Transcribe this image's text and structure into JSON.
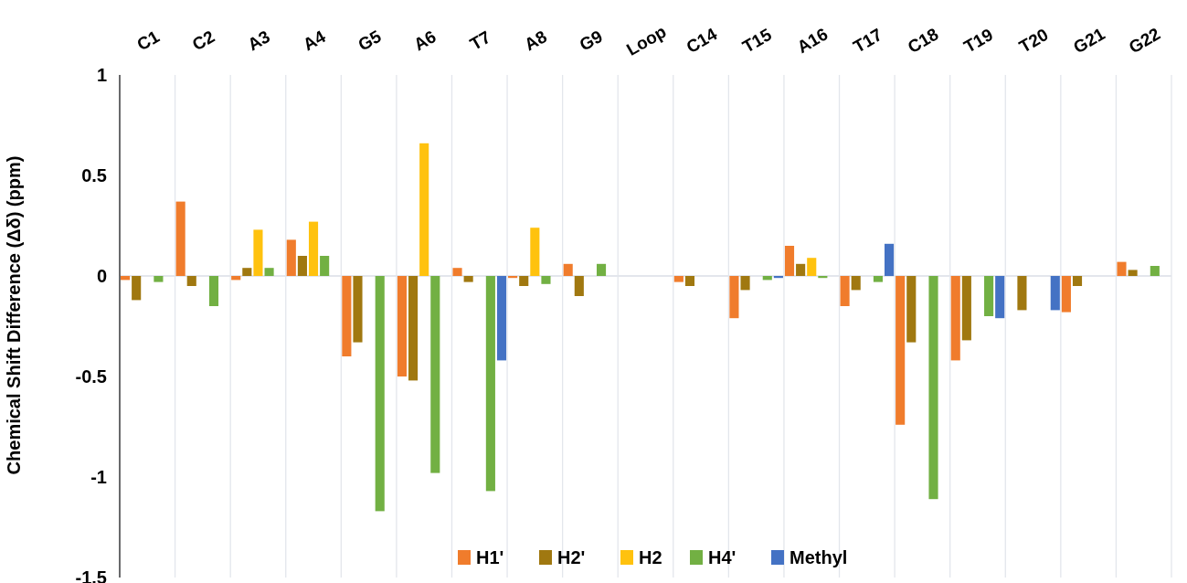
{
  "chart_data": {
    "type": "bar",
    "ylabel": "Chemical Shift Difference  (Δδ) (ppm)",
    "categories": [
      "C1",
      "C2",
      "A3",
      "A4",
      "G5",
      "A6",
      "T7",
      "A8",
      "G9",
      "Loop",
      "C14",
      "T15",
      "A16",
      "T17",
      "C18",
      "T19",
      "T20",
      "G21",
      "G22"
    ],
    "series": [
      {
        "name": "H1'",
        "color": "#f07c2c",
        "values": [
          -0.02,
          0.37,
          -0.02,
          0.18,
          -0.4,
          -0.5,
          0.04,
          -0.01,
          0.06,
          null,
          -0.03,
          -0.21,
          0.15,
          -0.15,
          -0.74,
          -0.42,
          null,
          -0.18,
          0.07
        ]
      },
      {
        "name": "H2'",
        "color": "#a07810",
        "values": [
          -0.12,
          -0.05,
          0.04,
          0.1,
          -0.33,
          -0.52,
          -0.03,
          -0.05,
          -0.1,
          null,
          -0.05,
          -0.07,
          0.06,
          -0.07,
          -0.33,
          -0.32,
          -0.17,
          -0.05,
          0.03
        ]
      },
      {
        "name": "H2",
        "color": "#ffc20e",
        "values": [
          null,
          null,
          0.23,
          0.27,
          null,
          0.66,
          null,
          0.24,
          null,
          null,
          null,
          null,
          0.09,
          null,
          null,
          null,
          null,
          null,
          null
        ]
      },
      {
        "name": "H4'",
        "color": "#72b043",
        "values": [
          -0.03,
          -0.15,
          0.04,
          0.1,
          -1.17,
          -0.98,
          -1.07,
          -0.04,
          0.06,
          null,
          null,
          -0.02,
          -0.01,
          -0.03,
          -1.11,
          -0.2,
          null,
          null,
          0.05
        ]
      },
      {
        "name": "Methyl",
        "color": "#4472c4",
        "values": [
          null,
          null,
          null,
          null,
          null,
          null,
          -0.42,
          null,
          null,
          null,
          null,
          -0.01,
          null,
          0.16,
          null,
          -0.21,
          -0.17,
          null,
          null
        ]
      }
    ],
    "ylim": [
      -1.5,
      1
    ],
    "yticks": [
      -1.5,
      -1,
      -0.5,
      0,
      0.5,
      1
    ],
    "grid": "x",
    "legend": "bottom"
  }
}
